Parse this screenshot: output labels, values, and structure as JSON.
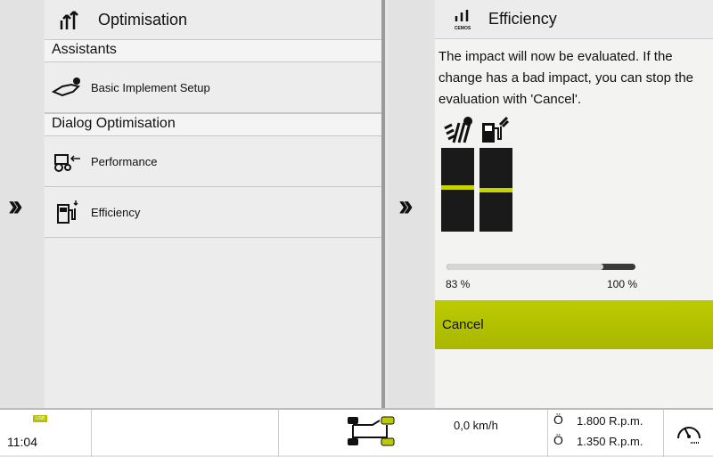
{
  "left_panel": {
    "title": "Optimisation",
    "sections": [
      {
        "label": "Assistants",
        "items": [
          {
            "label": "Basic Implement Setup",
            "icon": "implement-setup-icon"
          }
        ]
      },
      {
        "label": "Dialog Optimisation",
        "items": [
          {
            "label": "Performance",
            "icon": "performance-icon"
          },
          {
            "label": "Efficiency",
            "icon": "fuel-pump-icon"
          }
        ]
      }
    ]
  },
  "nav": {
    "expand_icon": "double-chevron-right-icon"
  },
  "right_panel": {
    "logo_text": "CEMOS",
    "title": "Efficiency",
    "message": "The impact will now be evaluated. If the change has a bad impact, you can stop the evaluation with 'Cancel'.",
    "bars": [
      {
        "icon": "area-performance-icon",
        "level": 0.53
      },
      {
        "icon": "fuel-consumption-icon",
        "level": 0.5
      }
    ],
    "progress": {
      "fraction": 0.83,
      "start_label": "83 %",
      "end_label": "100 %"
    },
    "cancel_label": "Cancel"
  },
  "status_bar": {
    "usb_label": "USB",
    "time": "11:04",
    "speed": "0,0 km/h",
    "rpm1": "1.800 R.p.m.",
    "rpm2": "1.350 R.p.m."
  },
  "colors": {
    "accent": "#b5c300",
    "bar": "#1a1a1a"
  }
}
